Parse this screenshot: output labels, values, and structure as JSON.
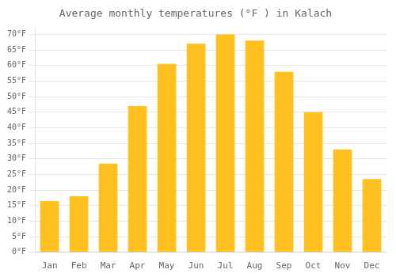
{
  "chart_data": {
    "type": "bar",
    "title": "Average monthly temperatures (°F ) in Kalach",
    "categories": [
      "Jan",
      "Feb",
      "Mar",
      "Apr",
      "May",
      "Jun",
      "Jul",
      "Aug",
      "Sep",
      "Oct",
      "Nov",
      "Dec"
    ],
    "values": [
      16.5,
      18.0,
      28.5,
      47.0,
      60.5,
      67.0,
      70.0,
      68.0,
      58.0,
      45.0,
      33.0,
      23.5
    ],
    "color": "#FFC020",
    "ylim": [
      0,
      72
    ],
    "yticks": [
      {
        "value": 0,
        "label": "0°F"
      },
      {
        "value": 5,
        "label": "5°F"
      },
      {
        "value": 10,
        "label": "10°F"
      },
      {
        "value": 15,
        "label": "15°F"
      },
      {
        "value": 20,
        "label": "20°F"
      },
      {
        "value": 25,
        "label": "25°F"
      },
      {
        "value": 30,
        "label": "30°F"
      },
      {
        "value": 35,
        "label": "35°F"
      },
      {
        "value": 40,
        "label": "40°F"
      },
      {
        "value": 45,
        "label": "45°F"
      },
      {
        "value": 50,
        "label": "50°F"
      },
      {
        "value": 55,
        "label": "55°F"
      },
      {
        "value": 60,
        "label": "60°F"
      },
      {
        "value": 65,
        "label": "65°F"
      },
      {
        "value": 70,
        "label": "70°F"
      }
    ],
    "grid": true
  }
}
